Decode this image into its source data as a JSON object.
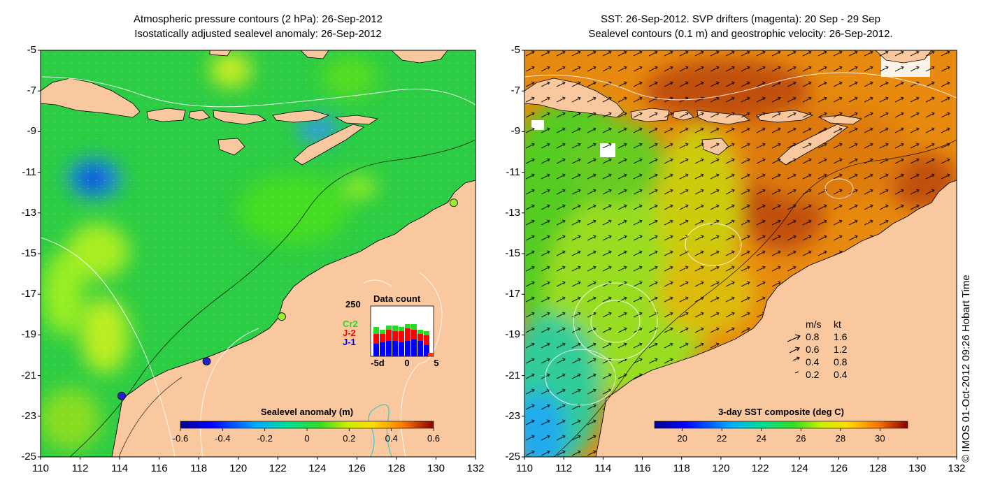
{
  "left_panel": {
    "title_line1": "Atmospheric pressure contours (2 hPa): 26-Sep-2012",
    "title_line2": "Isostatically adjusted sealevel anomaly: 26-Sep-2012",
    "colorbar": {
      "label": "Sealevel anomaly (m)",
      "ticks": [
        "-0.6",
        "-0.4",
        "-0.2",
        "0",
        "0.2",
        "0.4",
        "0.6"
      ],
      "range": [
        -0.6,
        0.6
      ]
    },
    "inset": {
      "title": "Data count",
      "ymax_label": "250",
      "xtick_labels": [
        "-5d",
        "0",
        "5"
      ],
      "series": [
        {
          "name": "Cr2",
          "color": "#22dd22"
        },
        {
          "name": "J-2",
          "color": "#ff0000"
        },
        {
          "name": "J-1",
          "color": "#0000ff"
        }
      ]
    },
    "tide_gauges": [
      {
        "lon": 130.9,
        "lat": -12.5,
        "color": "#99ee33"
      },
      {
        "lon": 122.2,
        "lat": -18.1,
        "color": "#99ee33"
      },
      {
        "lon": 118.4,
        "lat": -20.3,
        "color": "#2222cc"
      },
      {
        "lon": 114.1,
        "lat": -22.0,
        "color": "#2222cc"
      }
    ]
  },
  "right_panel": {
    "title_line1": "SST: 26-Sep-2012. SVP drifters (magenta): 20 Sep - 29 Sep",
    "title_line2": "Sealevel contours (0.1 m) and geostrophic velocity: 26-Sep-2012.",
    "colorbar": {
      "label": "3-day SST composite (deg C)",
      "ticks": [
        "20",
        "22",
        "24",
        "26",
        "28",
        "30"
      ],
      "range": [
        18.6,
        31.4
      ]
    },
    "speed_legend": {
      "header_ms": "m/s",
      "header_kt": "kt",
      "rows": [
        {
          "ms": "0.8",
          "kt": "1.6"
        },
        {
          "ms": "0.6",
          "kt": "1.2"
        },
        {
          "ms": "0.4",
          "kt": "0.8"
        },
        {
          "ms": "0.2",
          "kt": "0.4"
        }
      ]
    }
  },
  "axes": {
    "lat_ticks": [
      "-5",
      "-7",
      "-9",
      "-11",
      "-13",
      "-15",
      "-17",
      "-19",
      "-21",
      "-23",
      "-25"
    ],
    "lon_ticks": [
      "110",
      "112",
      "114",
      "116",
      "118",
      "120",
      "122",
      "124",
      "126",
      "128",
      "130",
      "132"
    ],
    "lon_range": [
      110,
      132
    ],
    "lat_range": [
      -25,
      -5
    ]
  },
  "credit": "© IMOS 01-Oct-2012 09:26 Hobart Time",
  "colors": {
    "land": "#f9c89e",
    "sla_base": "#22cc44",
    "sst_base": "#e88a10",
    "contour": "#ffffff"
  }
}
